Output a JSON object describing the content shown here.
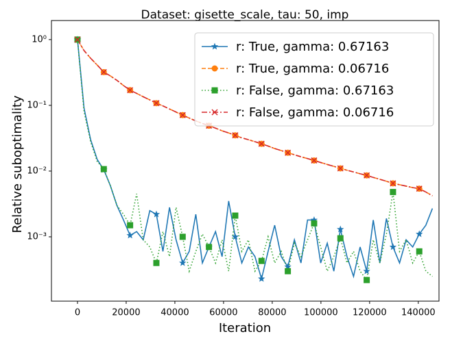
{
  "chart_data": {
    "type": "line",
    "title": "Dataset: gisette_scale, tau: 50, imp",
    "xlabel": "Iteration",
    "ylabel": "Relative suboptimality",
    "x": [
      0,
      2700,
      5400,
      8100,
      10800,
      13500,
      16200,
      18900,
      21600,
      24300,
      27000,
      29700,
      32400,
      35100,
      37800,
      40500,
      43200,
      45900,
      48600,
      51300,
      54000,
      56700,
      59400,
      62100,
      64800,
      67500,
      70200,
      72900,
      75600,
      78300,
      81000,
      83700,
      86400,
      89100,
      91800,
      94500,
      97200,
      99900,
      102600,
      105300,
      108000,
      110700,
      113400,
      116100,
      118800,
      121500,
      124200,
      126900,
      129600,
      132300,
      135000,
      137700,
      140400,
      143100,
      145800
    ],
    "xlim": [
      -10700,
      148500
    ],
    "xticks": [
      0,
      20000,
      40000,
      60000,
      80000,
      100000,
      120000,
      140000
    ],
    "ylog": true,
    "ylim": [
      0.000105,
      1.95
    ],
    "yticks": [
      {
        "value": 1,
        "label": "10⁰"
      },
      {
        "value": 0.1,
        "label": "10⁻¹"
      },
      {
        "value": 0.01,
        "label": "10⁻²"
      },
      {
        "value": 0.001,
        "label": "10⁻³"
      }
    ],
    "legend": "upper right",
    "markevery": 4,
    "series": [
      {
        "name": "r: True, gamma: 0.67163",
        "color": "#1f77b4",
        "dash": "solid",
        "marker": "star",
        "values": [
          1,
          0.09,
          0.03,
          0.015,
          0.0105,
          0.006,
          0.003,
          0.0018,
          0.00105,
          0.0012,
          0.0009,
          0.0025,
          0.0022,
          0.0006,
          0.0028,
          0.0009,
          0.0004,
          0.0006,
          0.0022,
          0.0004,
          0.0007,
          0.0012,
          0.0005,
          0.0035,
          0.001,
          0.0004,
          0.0007,
          0.0005,
          0.00023,
          0.0006,
          0.0015,
          0.0005,
          0.00035,
          0.0009,
          0.0004,
          0.0018,
          0.0018,
          0.0004,
          0.0008,
          0.0003,
          0.0013,
          0.0005,
          0.00025,
          0.0007,
          0.0003,
          0.0018,
          0.0004,
          0.0019,
          0.0007,
          0.0004,
          0.0009,
          0.0007,
          0.0011,
          0.0015,
          0.0027
        ]
      },
      {
        "name": "r: True, gamma: 0.06716",
        "color": "#ff7f0e",
        "dash": "dashed",
        "marker": "circle",
        "values": [
          1,
          0.68,
          0.52,
          0.41,
          0.32,
          0.28,
          0.24,
          0.2,
          0.17,
          0.152,
          0.135,
          0.121,
          0.108,
          0.098,
          0.088,
          0.079,
          0.071,
          0.064,
          0.058,
          0.053,
          0.049,
          0.045,
          0.041,
          0.038,
          0.035,
          0.032,
          0.03,
          0.028,
          0.026,
          0.024,
          0.022,
          0.0205,
          0.019,
          0.0177,
          0.0165,
          0.0155,
          0.0145,
          0.0135,
          0.0126,
          0.0118,
          0.011,
          0.0103,
          0.0097,
          0.0091,
          0.0086,
          0.008,
          0.0075,
          0.007,
          0.0065,
          0.0062,
          0.0059,
          0.0056,
          0.0054,
          0.0048,
          0.0042
        ]
      },
      {
        "name": "r: False, gamma: 0.67163",
        "color": "#2ca02c",
        "dash": "dotted",
        "marker": "square",
        "values": [
          1,
          0.08,
          0.028,
          0.014,
          0.0107,
          0.006,
          0.003,
          0.0022,
          0.0015,
          0.0045,
          0.0009,
          0.0007,
          0.0004,
          0.0012,
          0.0005,
          0.0028,
          0.001,
          0.0003,
          0.0006,
          0.0011,
          0.0007,
          0.0004,
          0.0009,
          0.0003,
          0.0021,
          0.0006,
          0.0009,
          0.0003,
          0.00043,
          0.001,
          0.0004,
          0.0006,
          0.0003,
          0.0008,
          0.0005,
          0.0009,
          0.0016,
          0.0007,
          0.0003,
          0.0005,
          0.00095,
          0.0004,
          0.0006,
          0.0003,
          0.00022,
          0.0009,
          0.0004,
          0.0011,
          0.0048,
          0.0006,
          0.0009,
          0.0004,
          0.0006,
          0.0003,
          0.00025
        ]
      },
      {
        "name": "r: False, gamma: 0.06716",
        "color": "#d62728",
        "dash": "dashdot",
        "marker": "x",
        "values": [
          1,
          0.68,
          0.52,
          0.41,
          0.32,
          0.28,
          0.24,
          0.2,
          0.17,
          0.152,
          0.135,
          0.121,
          0.108,
          0.098,
          0.088,
          0.079,
          0.071,
          0.064,
          0.058,
          0.053,
          0.049,
          0.045,
          0.041,
          0.038,
          0.035,
          0.032,
          0.03,
          0.028,
          0.026,
          0.024,
          0.022,
          0.0205,
          0.019,
          0.0177,
          0.0165,
          0.0155,
          0.0145,
          0.0135,
          0.0126,
          0.0118,
          0.011,
          0.0103,
          0.0097,
          0.0091,
          0.0086,
          0.008,
          0.0075,
          0.007,
          0.0065,
          0.0062,
          0.0059,
          0.0056,
          0.0054,
          0.0048,
          0.0042
        ]
      }
    ]
  }
}
